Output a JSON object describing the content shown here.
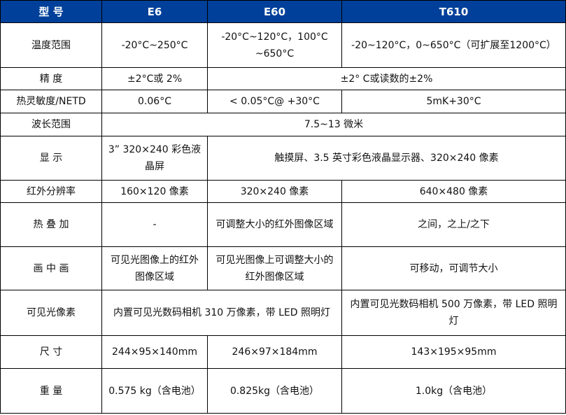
{
  "header": [
    "型 号",
    "E6",
    "E60",
    "T610"
  ],
  "rows": [
    {
      "label": "温度范围",
      "cells": [
        "-20°C~250°C",
        "-20°C~120°C，100°C ~650°C",
        "-20~120°C，0~650°C（可扩展至1200°C）"
      ]
    },
    {
      "label": "精 度",
      "cells": [
        "±2°C或 2%",
        "±2° C或读数的±2%"
      ]
    },
    {
      "label": "热灵敏度/NETD",
      "cells": [
        "0.06°C",
        "< 0.05°C@ +30°C",
        "5mK+30°C"
      ]
    },
    {
      "label": "波长范围",
      "cells": [
        "7.5~13 微米"
      ]
    },
    {
      "label": "显 示",
      "cells": [
        "3” 320×240 彩色液晶屏",
        "触摸屏、3.5 英寸彩色液晶显示器、320×240 像素"
      ]
    },
    {
      "label": "红外分辨率",
      "cells": [
        "160×120 像素",
        "320×240 像素",
        "640×480 像素"
      ]
    },
    {
      "label": "热 叠 加",
      "cells": [
        "-",
        "可调整大小的红外图像区域",
        "之间，之上/之下"
      ]
    },
    {
      "label": "画 中 画",
      "cells": [
        "可见光图像上的红外图像区域",
        "可见光图像上可调整大小的红外图像区域",
        "可移动，可调节大小"
      ]
    },
    {
      "label": "可见光像素",
      "cells": [
        "内置可见光数码相机 310 万像素，带 LED 照明灯",
        "内置可见光数码相机 500 万像素，带 LED 照明灯"
      ]
    },
    {
      "label": "尺 寸",
      "cells": [
        "244×95×140mm",
        "246×97×184mm",
        "143×195×95mm"
      ]
    },
    {
      "label": "重 量",
      "cells": [
        "0.575 kg（含电池）",
        "0.825kg（含电池）",
        "1.0kg（含电池）"
      ]
    }
  ],
  "colors": {
    "header_bg": "#00409A",
    "header_text": "#FFFFFF"
  }
}
